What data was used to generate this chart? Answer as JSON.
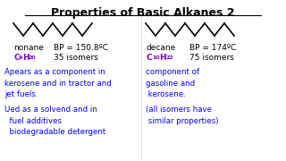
{
  "title": "Properties of Basic Alkanes 2",
  "left_name": "nonane",
  "left_bp": "BP = 150.8ºC",
  "left_isomers": "35 isomers",
  "left_text1": "Apears as a component in\nkerosene and in tractor and\njet fuels.",
  "left_text2": "Ued as a solvend and in\n  fuel additives\n  biodegradable detergent",
  "right_name": "decane",
  "right_bp": "BP = 174ºC",
  "right_isomers": "75 isomers",
  "right_text1": "component of\ngasoline and\n kerosene.",
  "right_text2": "(all isomers have\n similar properties)",
  "formula_color": "#7700bb",
  "text_color": "#0000ff",
  "title_color": "#000000",
  "black": "#000000",
  "white": "#ffffff",
  "gray": "#cccccc"
}
